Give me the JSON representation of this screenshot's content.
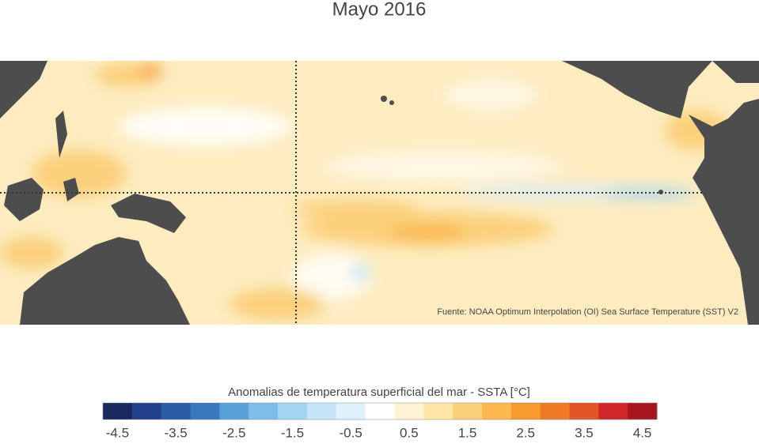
{
  "title": "Mayo 2016",
  "source": "Fuente: NOAA Optimum Interpolation (OI) Sea Surface Temperature (SST) V2",
  "colorbar": {
    "label": "Anomalias de temperatura superficial del mar - SSTA  [°C]",
    "lim": [
      -4.75,
      4.75
    ],
    "ticks": [
      -4.5,
      -3.5,
      -2.5,
      -1.5,
      -0.5,
      0.5,
      1.5,
      2.5,
      3.5,
      4.5
    ],
    "colors": [
      "#1a2a5e",
      "#23418a",
      "#2a5ca8",
      "#3a78be",
      "#58a0d8",
      "#7fbce8",
      "#a3d5f3",
      "#c4e5f7",
      "#e0f1fa",
      "#ffffff",
      "#fff3d4",
      "#fde5a8",
      "#fbd07c",
      "#fbb84e",
      "#f89a2e",
      "#f17a26",
      "#e35526",
      "#d2272a",
      "#a8161f"
    ]
  }
}
